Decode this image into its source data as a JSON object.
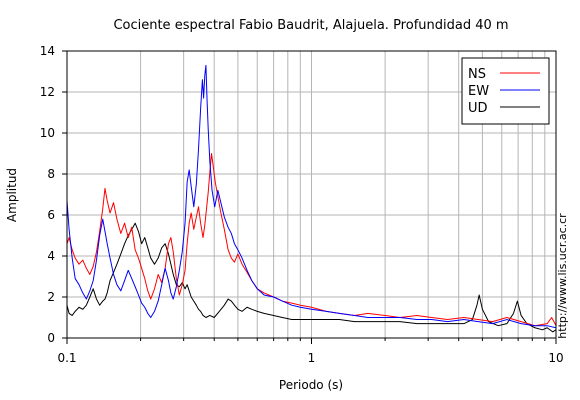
{
  "chart_data": {
    "type": "line",
    "title": "Cociente espectral Fabio Baudrit, Alajuela. Profundidad 40 m",
    "xlabel": "Periodo (s)",
    "ylabel": "Amplitud",
    "xscale": "log",
    "xlim": [
      0.1,
      10
    ],
    "ylim": [
      0,
      14
    ],
    "xticks": [
      {
        "value": 0.1,
        "label": "0.1"
      },
      {
        "value": 1,
        "label": "1"
      },
      {
        "value": 10,
        "label": "10"
      }
    ],
    "yticks": [
      0,
      2,
      4,
      6,
      8,
      10,
      12,
      14
    ],
    "grid": true,
    "legend_position": "top-right",
    "side_note": "http://www.lis.ucr.ac.cr",
    "series": [
      {
        "name": "NS",
        "color": "#ff0000",
        "points": [
          [
            0.1,
            4.6
          ],
          [
            0.102,
            4.9
          ],
          [
            0.105,
            4.3
          ],
          [
            0.108,
            3.9
          ],
          [
            0.112,
            3.6
          ],
          [
            0.116,
            3.8
          ],
          [
            0.12,
            3.4
          ],
          [
            0.124,
            3.1
          ],
          [
            0.128,
            3.5
          ],
          [
            0.132,
            4.2
          ],
          [
            0.136,
            5.2
          ],
          [
            0.14,
            6.3
          ],
          [
            0.143,
            7.3
          ],
          [
            0.146,
            6.7
          ],
          [
            0.15,
            6.1
          ],
          [
            0.155,
            6.6
          ],
          [
            0.16,
            5.8
          ],
          [
            0.166,
            5.1
          ],
          [
            0.172,
            5.6
          ],
          [
            0.178,
            4.9
          ],
          [
            0.184,
            5.4
          ],
          [
            0.19,
            4.3
          ],
          [
            0.196,
            3.9
          ],
          [
            0.202,
            3.4
          ],
          [
            0.208,
            2.9
          ],
          [
            0.214,
            2.3
          ],
          [
            0.22,
            1.9
          ],
          [
            0.228,
            2.4
          ],
          [
            0.236,
            3.1
          ],
          [
            0.244,
            2.7
          ],
          [
            0.252,
            3.4
          ],
          [
            0.26,
            4.6
          ],
          [
            0.266,
            4.9
          ],
          [
            0.272,
            4.2
          ],
          [
            0.28,
            2.9
          ],
          [
            0.288,
            2.1
          ],
          [
            0.296,
            2.6
          ],
          [
            0.304,
            3.3
          ],
          [
            0.31,
            4.6
          ],
          [
            0.316,
            5.6
          ],
          [
            0.322,
            6.1
          ],
          [
            0.33,
            5.3
          ],
          [
            0.338,
            5.9
          ],
          [
            0.345,
            6.4
          ],
          [
            0.352,
            5.6
          ],
          [
            0.36,
            4.9
          ],
          [
            0.366,
            5.5
          ],
          [
            0.372,
            6.3
          ],
          [
            0.378,
            7.1
          ],
          [
            0.384,
            8.1
          ],
          [
            0.39,
            9.0
          ],
          [
            0.396,
            8.4
          ],
          [
            0.404,
            7.6
          ],
          [
            0.414,
            6.9
          ],
          [
            0.426,
            6.1
          ],
          [
            0.44,
            5.3
          ],
          [
            0.456,
            4.3
          ],
          [
            0.47,
            3.9
          ],
          [
            0.484,
            3.7
          ],
          [
            0.5,
            4.1
          ],
          [
            0.52,
            3.6
          ],
          [
            0.545,
            3.2
          ],
          [
            0.57,
            2.8
          ],
          [
            0.6,
            2.4
          ],
          [
            0.64,
            2.2
          ],
          [
            0.7,
            2.0
          ],
          [
            0.76,
            1.8
          ],
          [
            0.83,
            1.7
          ],
          [
            0.9,
            1.6
          ],
          [
            1.0,
            1.5
          ],
          [
            1.15,
            1.3
          ],
          [
            1.3,
            1.2
          ],
          [
            1.5,
            1.1
          ],
          [
            1.7,
            1.2
          ],
          [
            2.0,
            1.1
          ],
          [
            2.3,
            1.0
          ],
          [
            2.7,
            1.1
          ],
          [
            3.1,
            1.0
          ],
          [
            3.6,
            0.9
          ],
          [
            4.2,
            1.0
          ],
          [
            4.8,
            0.9
          ],
          [
            5.5,
            0.8
          ],
          [
            6.3,
            1.0
          ],
          [
            7.2,
            0.8
          ],
          [
            8.2,
            0.6
          ],
          [
            9.2,
            0.7
          ],
          [
            9.6,
            1.0
          ],
          [
            10.0,
            0.6
          ]
        ]
      },
      {
        "name": "EW",
        "color": "#0000ff",
        "points": [
          [
            0.1,
            6.7
          ],
          [
            0.102,
            5.3
          ],
          [
            0.105,
            3.9
          ],
          [
            0.108,
            2.9
          ],
          [
            0.112,
            2.6
          ],
          [
            0.116,
            2.2
          ],
          [
            0.12,
            1.9
          ],
          [
            0.124,
            2.3
          ],
          [
            0.128,
            2.8
          ],
          [
            0.132,
            3.8
          ],
          [
            0.136,
            5.0
          ],
          [
            0.14,
            5.8
          ],
          [
            0.143,
            5.2
          ],
          [
            0.146,
            4.6
          ],
          [
            0.15,
            3.9
          ],
          [
            0.155,
            3.1
          ],
          [
            0.16,
            2.6
          ],
          [
            0.166,
            2.3
          ],
          [
            0.172,
            2.8
          ],
          [
            0.178,
            3.3
          ],
          [
            0.184,
            2.9
          ],
          [
            0.19,
            2.5
          ],
          [
            0.196,
            2.1
          ],
          [
            0.202,
            1.7
          ],
          [
            0.208,
            1.5
          ],
          [
            0.214,
            1.2
          ],
          [
            0.22,
            1.0
          ],
          [
            0.228,
            1.3
          ],
          [
            0.236,
            1.8
          ],
          [
            0.244,
            2.6
          ],
          [
            0.252,
            3.4
          ],
          [
            0.26,
            2.8
          ],
          [
            0.266,
            2.2
          ],
          [
            0.272,
            1.9
          ],
          [
            0.28,
            2.5
          ],
          [
            0.288,
            3.3
          ],
          [
            0.296,
            4.2
          ],
          [
            0.304,
            5.6
          ],
          [
            0.31,
            7.6
          ],
          [
            0.316,
            8.2
          ],
          [
            0.322,
            7.4
          ],
          [
            0.33,
            6.4
          ],
          [
            0.338,
            7.5
          ],
          [
            0.345,
            9.2
          ],
          [
            0.352,
            11.2
          ],
          [
            0.358,
            12.6
          ],
          [
            0.362,
            11.7
          ],
          [
            0.366,
            12.8
          ],
          [
            0.37,
            13.3
          ],
          [
            0.374,
            11.6
          ],
          [
            0.378,
            10.2
          ],
          [
            0.384,
            8.6
          ],
          [
            0.392,
            7.2
          ],
          [
            0.402,
            6.4
          ],
          [
            0.414,
            7.2
          ],
          [
            0.426,
            6.6
          ],
          [
            0.44,
            5.9
          ],
          [
            0.456,
            5.4
          ],
          [
            0.47,
            5.1
          ],
          [
            0.484,
            4.6
          ],
          [
            0.5,
            4.3
          ],
          [
            0.52,
            3.9
          ],
          [
            0.545,
            3.3
          ],
          [
            0.57,
            2.8
          ],
          [
            0.6,
            2.4
          ],
          [
            0.64,
            2.1
          ],
          [
            0.7,
            2.0
          ],
          [
            0.76,
            1.8
          ],
          [
            0.83,
            1.6
          ],
          [
            0.9,
            1.5
          ],
          [
            1.0,
            1.4
          ],
          [
            1.15,
            1.3
          ],
          [
            1.3,
            1.2
          ],
          [
            1.5,
            1.1
          ],
          [
            1.7,
            1.0
          ],
          [
            2.0,
            1.0
          ],
          [
            2.3,
            1.0
          ],
          [
            2.7,
            0.9
          ],
          [
            3.1,
            0.9
          ],
          [
            3.6,
            0.8
          ],
          [
            4.2,
            0.9
          ],
          [
            4.8,
            0.8
          ],
          [
            5.5,
            0.7
          ],
          [
            6.3,
            0.9
          ],
          [
            7.2,
            0.7
          ],
          [
            8.2,
            0.6
          ],
          [
            9.2,
            0.6
          ],
          [
            10.0,
            0.5
          ]
        ]
      },
      {
        "name": "UD",
        "color": "#000000",
        "points": [
          [
            0.1,
            1.6
          ],
          [
            0.102,
            1.2
          ],
          [
            0.105,
            1.1
          ],
          [
            0.108,
            1.3
          ],
          [
            0.112,
            1.5
          ],
          [
            0.116,
            1.4
          ],
          [
            0.12,
            1.6
          ],
          [
            0.124,
            2.0
          ],
          [
            0.128,
            2.4
          ],
          [
            0.132,
            1.9
          ],
          [
            0.136,
            1.6
          ],
          [
            0.14,
            1.8
          ],
          [
            0.143,
            1.9
          ],
          [
            0.146,
            2.2
          ],
          [
            0.15,
            2.8
          ],
          [
            0.155,
            3.2
          ],
          [
            0.16,
            3.6
          ],
          [
            0.166,
            4.1
          ],
          [
            0.172,
            4.6
          ],
          [
            0.178,
            5.0
          ],
          [
            0.184,
            5.3
          ],
          [
            0.19,
            5.6
          ],
          [
            0.196,
            5.2
          ],
          [
            0.202,
            4.6
          ],
          [
            0.208,
            4.9
          ],
          [
            0.214,
            4.4
          ],
          [
            0.22,
            3.9
          ],
          [
            0.228,
            3.6
          ],
          [
            0.236,
            3.9
          ],
          [
            0.244,
            4.4
          ],
          [
            0.252,
            4.6
          ],
          [
            0.26,
            4.1
          ],
          [
            0.266,
            3.6
          ],
          [
            0.272,
            3.1
          ],
          [
            0.28,
            2.6
          ],
          [
            0.288,
            2.5
          ],
          [
            0.296,
            2.7
          ],
          [
            0.304,
            2.4
          ],
          [
            0.31,
            2.6
          ],
          [
            0.316,
            2.3
          ],
          [
            0.322,
            2.0
          ],
          [
            0.33,
            1.8
          ],
          [
            0.338,
            1.6
          ],
          [
            0.345,
            1.4
          ],
          [
            0.352,
            1.3
          ],
          [
            0.36,
            1.1
          ],
          [
            0.37,
            1.0
          ],
          [
            0.384,
            1.1
          ],
          [
            0.4,
            1.0
          ],
          [
            0.42,
            1.3
          ],
          [
            0.44,
            1.6
          ],
          [
            0.456,
            1.9
          ],
          [
            0.47,
            1.8
          ],
          [
            0.484,
            1.6
          ],
          [
            0.5,
            1.4
          ],
          [
            0.52,
            1.3
          ],
          [
            0.545,
            1.5
          ],
          [
            0.57,
            1.4
          ],
          [
            0.6,
            1.3
          ],
          [
            0.64,
            1.2
          ],
          [
            0.7,
            1.1
          ],
          [
            0.76,
            1.0
          ],
          [
            0.83,
            0.9
          ],
          [
            0.9,
            0.9
          ],
          [
            1.0,
            0.9
          ],
          [
            1.15,
            0.9
          ],
          [
            1.3,
            0.9
          ],
          [
            1.5,
            0.8
          ],
          [
            1.7,
            0.8
          ],
          [
            2.0,
            0.8
          ],
          [
            2.3,
            0.8
          ],
          [
            2.7,
            0.7
          ],
          [
            3.1,
            0.7
          ],
          [
            3.6,
            0.7
          ],
          [
            4.2,
            0.7
          ],
          [
            4.55,
            0.9
          ],
          [
            4.75,
            1.6
          ],
          [
            4.85,
            2.1
          ],
          [
            5.0,
            1.4
          ],
          [
            5.3,
            0.8
          ],
          [
            5.8,
            0.6
          ],
          [
            6.3,
            0.7
          ],
          [
            6.7,
            1.2
          ],
          [
            6.95,
            1.8
          ],
          [
            7.2,
            1.1
          ],
          [
            7.6,
            0.7
          ],
          [
            8.2,
            0.5
          ],
          [
            8.8,
            0.4
          ],
          [
            9.2,
            0.5
          ],
          [
            9.7,
            0.3
          ],
          [
            10.0,
            0.4
          ]
        ]
      }
    ]
  }
}
